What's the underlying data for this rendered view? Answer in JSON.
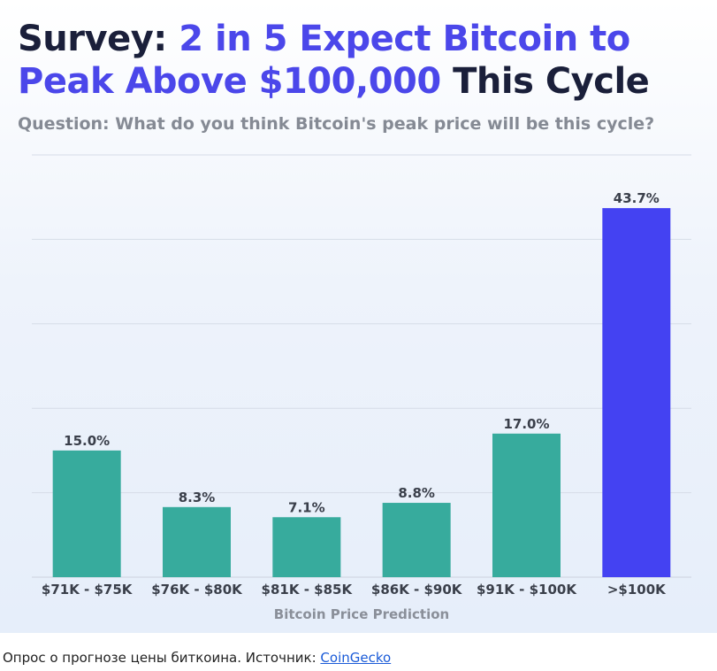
{
  "title": {
    "part1": "Survey: ",
    "part2": "2 in 5 Expect Bitcoin to Peak Above $100,000",
    "part3": " This Cycle"
  },
  "subtitle": "Question: What do you think Bitcoin's peak price will be this cycle?",
  "caption": {
    "text": "Опрос о прогнозе цены биткоина. Источник: ",
    "link": "CoinGecko"
  },
  "colors": {
    "title_dark": "#1a1f3a",
    "title_accent": "#4b47ea",
    "bar_default": "#37ab9d",
    "bar_highlight": "#4442f2",
    "gridline": "#d6dce8",
    "label": "#3a3f4a",
    "axis_title": "#8a8f99"
  },
  "chart_data": {
    "type": "bar",
    "title": "Survey: 2 in 5 Expect Bitcoin to Peak Above $100,000 This Cycle",
    "subtitle": "Question: What do you think Bitcoin's peak price will be this cycle?",
    "xlabel": "Bitcoin Price Prediction",
    "ylabel": "",
    "categories": [
      "$71K - $75K",
      "$76K - $80K",
      "$81K - $85K",
      "$86K - $90K",
      "$91K - $100K",
      ">$100K"
    ],
    "values": [
      15.0,
      8.3,
      7.1,
      8.8,
      17.0,
      43.7
    ],
    "data_labels": [
      "15.0%",
      "8.3%",
      "7.1%",
      "8.8%",
      "17.0%",
      "43.7%"
    ],
    "highlight_index": 5,
    "ylim": [
      0,
      50
    ],
    "gridlines": true,
    "legend": false
  }
}
